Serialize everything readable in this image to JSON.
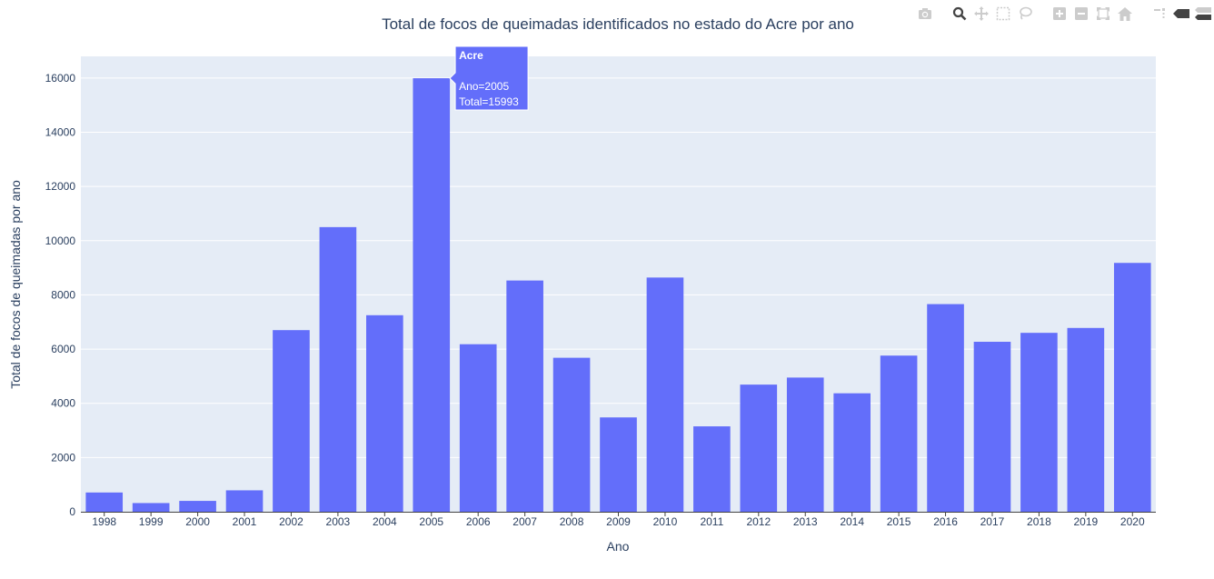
{
  "chart_data": {
    "type": "bar",
    "title": "Total de focos de queimadas identificados no estado do Acre por ano",
    "xlabel": "Ano",
    "ylabel": "Total de focos de queimadas por ano",
    "categories": [
      "1998",
      "1999",
      "2000",
      "2001",
      "2002",
      "2003",
      "2004",
      "2005",
      "2006",
      "2007",
      "2008",
      "2009",
      "2010",
      "2011",
      "2012",
      "2013",
      "2014",
      "2015",
      "2016",
      "2017",
      "2018",
      "2019",
      "2020"
    ],
    "values": [
      710,
      320,
      400,
      790,
      6700,
      10500,
      7250,
      15993,
      6180,
      8530,
      5680,
      3480,
      8640,
      3150,
      4690,
      4950,
      4370,
      5760,
      7660,
      6270,
      6600,
      6780,
      9180
    ],
    "ylim": [
      0,
      16800
    ],
    "yticks": [
      0,
      2000,
      4000,
      6000,
      8000,
      10000,
      12000,
      14000,
      16000
    ],
    "ytick_labels": [
      "0",
      "2000",
      "4000",
      "6000",
      "8000",
      "10000",
      "12000",
      "14000",
      "16000"
    ],
    "grid": true,
    "bar_color": "#636efa",
    "plot_bg": "#e5ecf6",
    "hover": {
      "category": "2005",
      "title": "Acre",
      "line1": "Ano=2005",
      "line2": "Total=15993"
    }
  },
  "modebar": {
    "icons": [
      "camera-icon",
      "zoom-icon",
      "pan-icon",
      "box-select-icon",
      "lasso-icon",
      "zoom-in-icon",
      "zoom-out-icon",
      "autoscale-icon",
      "home-icon",
      "spike-lines-icon",
      "hover-closest-icon",
      "hover-compare-icon",
      "plotly-logo-icon"
    ],
    "active_color": "#444444",
    "inactive_color": "#cccccc"
  }
}
